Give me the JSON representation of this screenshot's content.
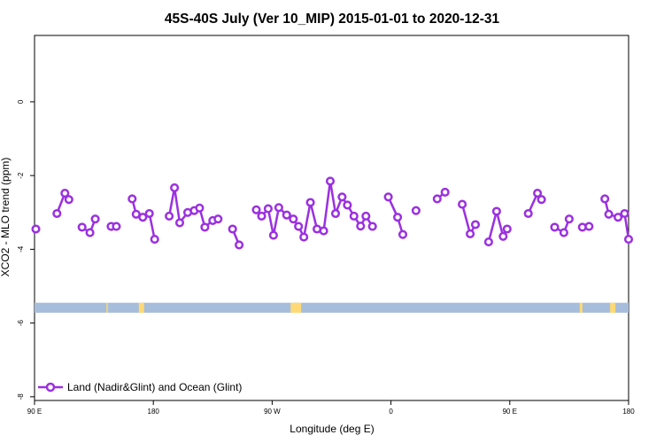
{
  "chart_data": {
    "type": "line",
    "title": "45S-40S July (Ver 10_MIP)   2015-01-01 to 2020-12-31",
    "xlabel": "Longitude (deg E)",
    "ylabel": "XCO2 - MLO trend (ppm)",
    "xlim": [
      90,
      540
    ],
    "ylim": [
      -8.1,
      1.8
    ],
    "x_ticks": [
      {
        "value": 90,
        "label": "90 E"
      },
      {
        "value": 180,
        "label": "180"
      },
      {
        "value": 270,
        "label": "90 W"
      },
      {
        "value": 360,
        "label": "0"
      },
      {
        "value": 450,
        "label": "90 E"
      },
      {
        "value": 540,
        "label": "180"
      }
    ],
    "y_ticks": [
      {
        "value": 0,
        "label": "0"
      },
      {
        "value": -2,
        "label": "-2"
      },
      {
        "value": -4,
        "label": "-4"
      },
      {
        "value": -6,
        "label": "-6"
      },
      {
        "value": -8,
        "label": "-8"
      }
    ],
    "series": [
      {
        "name": "Land (Nadir&Glint) and Ocean (Glint)",
        "color": "#9b30e0",
        "segments": [
          [
            [
              91,
              -3.45
            ]
          ],
          [
            [
              107,
              -3.03
            ],
            [
              113,
              -2.48
            ],
            [
              116,
              -2.65
            ]
          ],
          [
            [
              126,
              -3.4
            ],
            [
              132,
              -3.55
            ],
            [
              136,
              -3.18
            ]
          ],
          [
            [
              148,
              -3.38
            ],
            [
              152,
              -3.38
            ]
          ],
          [
            [
              164,
              -2.63
            ],
            [
              167,
              -3.05
            ],
            [
              172,
              -3.13
            ],
            [
              177,
              -3.03
            ],
            [
              181,
              -3.73
            ]
          ],
          [
            [
              192,
              -3.1
            ],
            [
              196,
              -2.33
            ],
            [
              200,
              -3.28
            ],
            [
              206,
              -3.0
            ],
            [
              211,
              -2.95
            ],
            [
              215,
              -2.88
            ],
            [
              219,
              -3.4
            ],
            [
              225,
              -3.22
            ],
            [
              229,
              -3.18
            ]
          ],
          [
            [
              240,
              -3.45
            ],
            [
              245,
              -3.88
            ]
          ],
          [
            [
              258,
              -2.93
            ],
            [
              262,
              -3.1
            ],
            [
              267,
              -2.9
            ],
            [
              271,
              -3.62
            ],
            [
              275,
              -2.87
            ],
            [
              281,
              -3.07
            ],
            [
              286,
              -3.18
            ],
            [
              290,
              -3.38
            ],
            [
              294,
              -3.67
            ],
            [
              299,
              -2.73
            ],
            [
              304,
              -3.45
            ],
            [
              309,
              -3.5
            ],
            [
              314,
              -2.15
            ],
            [
              318,
              -3.03
            ],
            [
              323,
              -2.58
            ],
            [
              327,
              -2.8
            ],
            [
              332,
              -3.1
            ],
            [
              337,
              -3.37
            ],
            [
              341,
              -3.1
            ],
            [
              346,
              -3.38
            ]
          ],
          [
            [
              358,
              -2.58
            ],
            [
              365,
              -3.13
            ],
            [
              369,
              -3.6
            ]
          ],
          [
            [
              379,
              -2.95
            ]
          ],
          [
            [
              395,
              -2.63
            ],
            [
              401,
              -2.45
            ]
          ],
          [
            [
              414,
              -2.78
            ],
            [
              420,
              -3.58
            ],
            [
              424,
              -3.33
            ]
          ],
          [
            [
              434,
              -3.8
            ],
            [
              440,
              -2.97
            ],
            [
              445,
              -3.65
            ],
            [
              448,
              -3.45
            ]
          ],
          [
            [
              464,
              -3.03
            ],
            [
              471,
              -2.48
            ],
            [
              474,
              -2.65
            ]
          ],
          [
            [
              484,
              -3.4
            ],
            [
              491,
              -3.55
            ],
            [
              495,
              -3.18
            ]
          ],
          [
            [
              505,
              -3.4
            ],
            [
              510,
              -3.38
            ]
          ],
          [
            [
              522,
              -2.63
            ],
            [
              525,
              -3.05
            ],
            [
              532,
              -3.13
            ],
            [
              537,
              -3.03
            ],
            [
              540,
              -3.73
            ]
          ]
        ]
      }
    ],
    "land_ocean_strip": {
      "y_top": -5.45,
      "y_bottom": -5.72,
      "ocean_color": "#a6bddb",
      "land_color": "#fed976",
      "land_spans": [
        [
          144.5,
          145.5
        ],
        [
          169,
          173
        ],
        [
          284,
          292
        ],
        [
          503,
          505
        ],
        [
          526,
          530
        ]
      ]
    },
    "legend_position": "bottom-left",
    "grid": false
  }
}
